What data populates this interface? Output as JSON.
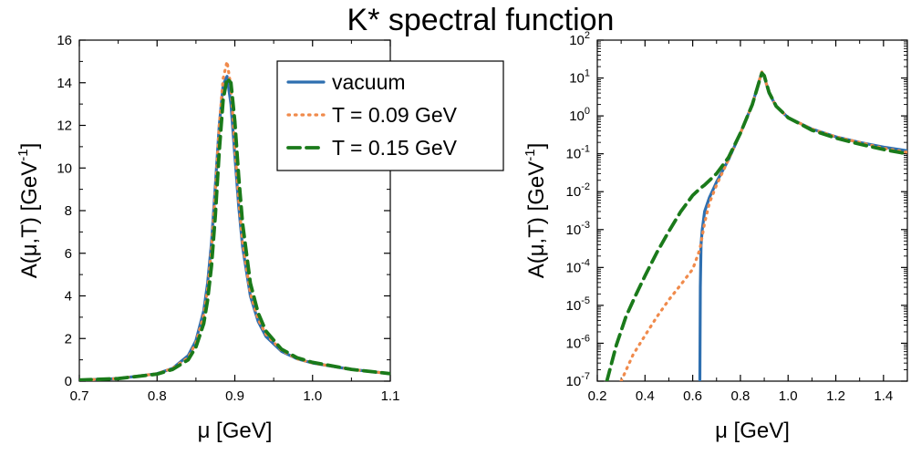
{
  "title": "K* spectral function",
  "chart_data": [
    {
      "type": "line",
      "panel": "left",
      "xlabel": "μ [GeV]",
      "ylabel_main": "A(μ,T) [GeV",
      "ylabel_sup": "-1",
      "ylabel_end": "]",
      "xlim": [
        0.7,
        1.1
      ],
      "ylim": [
        0,
        16
      ],
      "xticks": [
        0.7,
        0.8,
        0.9,
        1.0,
        1.1
      ],
      "xtick_labels": [
        "0.7",
        "0.8",
        "0.9",
        "1.0",
        "1.1"
      ],
      "yticks": [
        0,
        2,
        4,
        6,
        8,
        10,
        12,
        14,
        16
      ],
      "ytick_labels": [
        "0",
        "2",
        "4",
        "6",
        "8",
        "10",
        "12",
        "14",
        "16"
      ],
      "legend": {
        "placement": "top-right"
      },
      "series": [
        {
          "name": "vacuum",
          "color": "#2e6fb0",
          "style": "solid",
          "x": [
            0.7,
            0.75,
            0.8,
            0.82,
            0.84,
            0.85,
            0.86,
            0.865,
            0.87,
            0.875,
            0.88,
            0.885,
            0.89,
            0.895,
            0.9,
            0.905,
            0.91,
            0.92,
            0.93,
            0.94,
            0.96,
            0.98,
            1.0,
            1.05,
            1.1
          ],
          "y": [
            0.05,
            0.12,
            0.35,
            0.6,
            1.2,
            1.9,
            3.3,
            4.6,
            6.5,
            9.2,
            12.0,
            13.9,
            14.3,
            13.0,
            10.6,
            8.2,
            6.3,
            4.0,
            2.8,
            2.1,
            1.4,
            1.05,
            0.85,
            0.55,
            0.35
          ]
        },
        {
          "name": "T = 0.09 GeV",
          "color": "#f08a4b",
          "style": "dotted",
          "x": [
            0.7,
            0.75,
            0.8,
            0.82,
            0.84,
            0.85,
            0.86,
            0.865,
            0.87,
            0.875,
            0.88,
            0.885,
            0.89,
            0.895,
            0.9,
            0.905,
            0.91,
            0.92,
            0.93,
            0.94,
            0.96,
            0.98,
            1.0,
            1.05,
            1.1
          ],
          "y": [
            0.05,
            0.12,
            0.35,
            0.6,
            1.1,
            1.8,
            3.1,
            4.3,
            6.2,
            8.9,
            12.0,
            14.2,
            15.0,
            13.8,
            11.0,
            8.5,
            6.5,
            4.1,
            2.9,
            2.2,
            1.45,
            1.05,
            0.85,
            0.55,
            0.35
          ]
        },
        {
          "name": "T = 0.15 GeV",
          "color": "#1a7a1a",
          "style": "dashed",
          "x": [
            0.7,
            0.75,
            0.8,
            0.82,
            0.84,
            0.85,
            0.86,
            0.865,
            0.87,
            0.875,
            0.88,
            0.885,
            0.89,
            0.895,
            0.9,
            0.905,
            0.91,
            0.92,
            0.93,
            0.94,
            0.96,
            0.98,
            1.0,
            1.05,
            1.1
          ],
          "y": [
            0.05,
            0.12,
            0.33,
            0.55,
            1.0,
            1.6,
            2.7,
            3.8,
            5.4,
            7.8,
            10.8,
            13.2,
            14.2,
            14.0,
            12.2,
            9.6,
            7.4,
            4.6,
            3.2,
            2.35,
            1.5,
            1.1,
            0.88,
            0.55,
            0.35
          ]
        }
      ]
    },
    {
      "type": "line",
      "panel": "right",
      "scale_y": "log",
      "xlabel": "μ [GeV]",
      "ylabel_main": "A(μ,T) [GeV",
      "ylabel_sup": "-1",
      "ylabel_end": "]",
      "xlim": [
        0.2,
        1.5
      ],
      "ylim": [
        1e-07,
        100
      ],
      "xticks": [
        0.2,
        0.4,
        0.6,
        0.8,
        1.0,
        1.2,
        1.4
      ],
      "xtick_labels": [
        "0.2",
        "0.4",
        "0.6",
        "0.8",
        "1.0",
        "1.2",
        "1.4"
      ],
      "yticks": [
        -7,
        -6,
        -5,
        -4,
        -3,
        -2,
        -1,
        0,
        1,
        2
      ],
      "ytick_base": "10",
      "series": [
        {
          "name": "vacuum",
          "color": "#2e6fb0",
          "style": "solid",
          "x": [
            0.63,
            0.632,
            0.635,
            0.64,
            0.65,
            0.67,
            0.7,
            0.75,
            0.8,
            0.85,
            0.88,
            0.89,
            0.9,
            0.92,
            0.95,
            1.0,
            1.1,
            1.2,
            1.3,
            1.4,
            1.5
          ],
          "y": [
            1e-07,
            3e-05,
            0.0004,
            0.001,
            0.003,
            0.007,
            0.018,
            0.07,
            0.35,
            2.0,
            9.0,
            14.0,
            11.0,
            4.0,
            1.8,
            0.9,
            0.45,
            0.28,
            0.2,
            0.15,
            0.12
          ]
        },
        {
          "name": "T = 0.09 GeV",
          "color": "#f08a4b",
          "style": "dotted",
          "x": [
            0.3,
            0.35,
            0.4,
            0.45,
            0.5,
            0.55,
            0.6,
            0.63,
            0.65,
            0.67,
            0.7,
            0.75,
            0.8,
            0.85,
            0.88,
            0.89,
            0.9,
            0.92,
            0.95,
            1.0,
            1.1,
            1.2,
            1.3,
            1.4,
            1.5
          ],
          "y": [
            1e-07,
            5e-07,
            1.6e-06,
            5e-06,
            1.4e-05,
            3.5e-05,
            9e-05,
            0.0003,
            0.0015,
            0.005,
            0.015,
            0.07,
            0.35,
            2.0,
            9.0,
            14.5,
            11.0,
            4.0,
            1.8,
            0.9,
            0.45,
            0.28,
            0.2,
            0.14,
            0.11
          ]
        },
        {
          "name": "T = 0.15 GeV",
          "color": "#1a7a1a",
          "style": "dashed",
          "x": [
            0.24,
            0.28,
            0.32,
            0.36,
            0.4,
            0.45,
            0.5,
            0.55,
            0.6,
            0.63,
            0.65,
            0.7,
            0.75,
            0.8,
            0.85,
            0.88,
            0.89,
            0.9,
            0.92,
            0.95,
            1.0,
            1.1,
            1.2,
            1.3,
            1.4,
            1.5
          ],
          "y": [
            1e-07,
            9e-07,
            5e-06,
            1.8e-05,
            6e-05,
            0.00025,
            0.0009,
            0.003,
            0.008,
            0.012,
            0.015,
            0.03,
            0.08,
            0.35,
            2.0,
            8.5,
            13.5,
            11.5,
            4.2,
            1.8,
            0.9,
            0.42,
            0.26,
            0.18,
            0.13,
            0.1
          ]
        }
      ]
    }
  ]
}
